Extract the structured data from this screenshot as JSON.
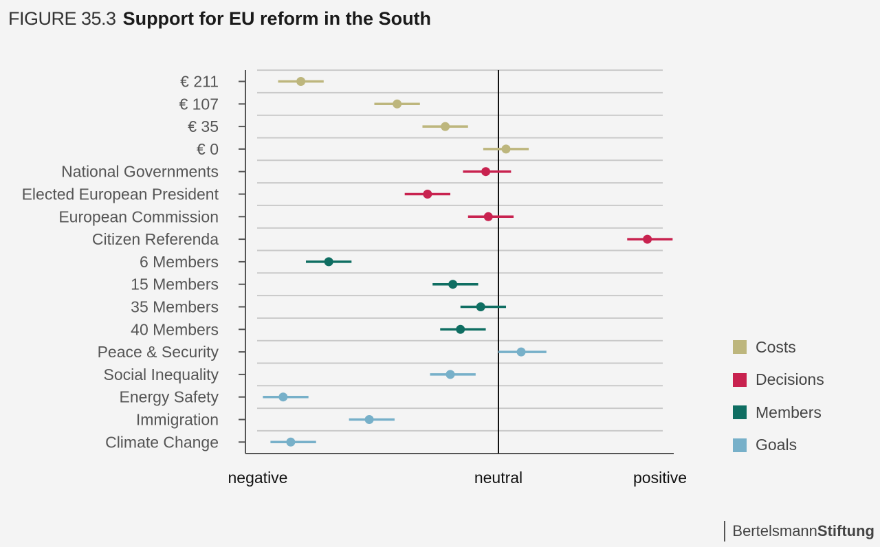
{
  "header": {
    "figure_label": "FIGURE 35.3",
    "title": "Support for EU reform in the South"
  },
  "brand": {
    "light": "Bertelsmann",
    "bold": "Stiftung"
  },
  "colors": {
    "Costs": "#bdb67d",
    "Decisions": "#c8224f",
    "Members": "#0f6e62",
    "Goals": "#77b0c9",
    "gridline": "#c9c9c9",
    "axis": "#555555",
    "neutral_line": "#111111"
  },
  "legend": [
    {
      "label": "Costs",
      "color_key": "Costs"
    },
    {
      "label": "Decisions",
      "color_key": "Decisions"
    },
    {
      "label": "Members",
      "color_key": "Members"
    },
    {
      "label": "Goals",
      "color_key": "Goals"
    }
  ],
  "chart_data": {
    "type": "scatter",
    "subtype": "dot-and-whisker",
    "title": "Support for EU reform in the South",
    "x_scale": {
      "min": -1,
      "max": 0.7,
      "neutral": 0
    },
    "x_ticks": [
      {
        "label": "negative",
        "value": -0.95
      },
      {
        "label": "neutral",
        "value": 0
      },
      {
        "label": "positive",
        "value": 0.64
      }
    ],
    "grid": true,
    "legend_position": "right",
    "categories": [
      "€ 211",
      "€ 107",
      "€ 35",
      "€ 0",
      "National Governments",
      "Elected European President",
      "European Commission",
      "Citizen Referenda",
      "6 Members",
      "15 Members",
      "35 Members",
      "40 Members",
      "Peace & Security",
      "Social Inequality",
      "Energy Safety",
      "Immigration",
      "Climate Change"
    ],
    "groups": [
      "Costs",
      "Costs",
      "Costs",
      "Costs",
      "Decisions",
      "Decisions",
      "Decisions",
      "Decisions",
      "Members",
      "Members",
      "Members",
      "Members",
      "Goals",
      "Goals",
      "Goals",
      "Goals",
      "Goals"
    ],
    "values": [
      -0.78,
      -0.4,
      -0.21,
      0.03,
      -0.05,
      -0.28,
      -0.04,
      0.59,
      -0.67,
      -0.18,
      -0.07,
      -0.15,
      0.09,
      -0.19,
      -0.85,
      -0.51,
      -0.82
    ],
    "ci_low": [
      -0.87,
      -0.49,
      -0.3,
      -0.06,
      -0.14,
      -0.37,
      -0.12,
      0.51,
      -0.76,
      -0.26,
      -0.15,
      -0.23,
      0.0,
      -0.27,
      -0.93,
      -0.59,
      -0.9
    ],
    "ci_high": [
      -0.69,
      -0.31,
      -0.12,
      0.12,
      0.05,
      -0.19,
      0.06,
      0.69,
      -0.58,
      -0.08,
      0.03,
      -0.05,
      0.19,
      -0.09,
      -0.75,
      -0.41,
      -0.72
    ]
  }
}
